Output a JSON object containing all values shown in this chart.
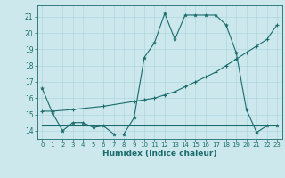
{
  "xlabel": "Humidex (Indice chaleur)",
  "bg_color": "#cce8ed",
  "grid_color": "#b0d8e0",
  "line_color": "#1a6b6b",
  "xlim": [
    -0.5,
    23.5
  ],
  "ylim": [
    13.5,
    21.7
  ],
  "xticks": [
    0,
    1,
    2,
    3,
    4,
    5,
    6,
    7,
    8,
    9,
    10,
    11,
    12,
    13,
    14,
    15,
    16,
    17,
    18,
    19,
    20,
    21,
    22,
    23
  ],
  "yticks": [
    14,
    15,
    16,
    17,
    18,
    19,
    20,
    21
  ],
  "line1_x": [
    0,
    1,
    2,
    3,
    4,
    5,
    6,
    7,
    8,
    9,
    10,
    11,
    12,
    13,
    14,
    15,
    16,
    17,
    18,
    19,
    20,
    21,
    22,
    23
  ],
  "line1_y": [
    16.6,
    15.1,
    14.0,
    14.5,
    14.5,
    14.2,
    14.3,
    13.8,
    13.8,
    14.8,
    18.5,
    19.4,
    21.2,
    19.6,
    21.1,
    21.1,
    21.1,
    21.1,
    20.5,
    18.8,
    15.3,
    13.9,
    14.3,
    14.3
  ],
  "line2_x": [
    0,
    1,
    3,
    6,
    9,
    10,
    11,
    12,
    13,
    14,
    15,
    16,
    17,
    18,
    19,
    20,
    21,
    22,
    23
  ],
  "line2_y": [
    15.2,
    15.2,
    15.3,
    15.5,
    15.8,
    15.9,
    16.0,
    16.2,
    16.4,
    16.7,
    17.0,
    17.3,
    17.6,
    18.0,
    18.4,
    18.8,
    19.2,
    19.6,
    20.5
  ],
  "line3_x": [
    0,
    1,
    2,
    3,
    4,
    5,
    6,
    7,
    8,
    9,
    10,
    11,
    12,
    13,
    14,
    15,
    16,
    17,
    18,
    19,
    20,
    21,
    22,
    23
  ],
  "line3_y": [
    14.3,
    14.3,
    14.3,
    14.3,
    14.3,
    14.3,
    14.3,
    14.3,
    14.3,
    14.3,
    14.3,
    14.3,
    14.3,
    14.3,
    14.3,
    14.3,
    14.3,
    14.3,
    14.3,
    14.3,
    14.3,
    14.3,
    14.3,
    14.3
  ]
}
